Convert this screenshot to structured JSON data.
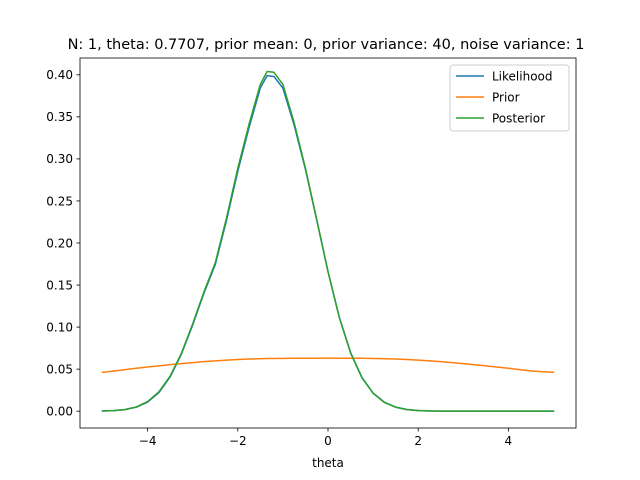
{
  "chart_data": {
    "type": "line",
    "title": "N: 1, theta: 0.7707, prior mean: 0, prior variance: 40, noise variance: 1",
    "xlabel": "theta",
    "ylabel": "",
    "xlim": [
      -5.5,
      5.5
    ],
    "ylim": [
      -0.02,
      0.42
    ],
    "xticks": [
      -4,
      -2,
      0,
      2,
      4
    ],
    "xtick_labels": [
      "−4",
      "−2",
      "0",
      "2",
      "4"
    ],
    "yticks": [
      0.0,
      0.05,
      0.1,
      0.15,
      0.2,
      0.25,
      0.3,
      0.35,
      0.4
    ],
    "ytick_labels": [
      "0.00",
      "0.05",
      "0.10",
      "0.15",
      "0.20",
      "0.25",
      "0.30",
      "0.35",
      "0.40"
    ],
    "grid": false,
    "legend_position": "top-right",
    "x": [
      -5.0,
      -4.75,
      -4.5,
      -4.25,
      -4.0,
      -3.75,
      -3.5,
      -3.25,
      -3.0,
      -2.75,
      -2.5,
      -2.25,
      -2.0,
      -1.75,
      -1.5,
      -1.35,
      -1.2,
      -1.0,
      -0.75,
      -0.5,
      -0.25,
      0.0,
      0.25,
      0.5,
      0.75,
      1.0,
      1.25,
      1.5,
      1.75,
      2.0,
      2.25,
      2.5,
      2.75,
      3.0,
      3.5,
      4.0,
      4.5,
      5.0
    ],
    "series": [
      {
        "name": "Likelihood",
        "color": "#1f77b4",
        "values": [
          0.0002,
          0.0007,
          0.0019,
          0.0048,
          0.0109,
          0.0222,
          0.0408,
          0.068,
          0.1026,
          0.1405,
          0.1743,
          0.2272,
          0.2854,
          0.3375,
          0.3845,
          0.399,
          0.398,
          0.3842,
          0.34,
          0.2874,
          0.2272,
          0.1659,
          0.1119,
          0.0699,
          0.0404,
          0.0216,
          0.0107,
          0.0049,
          0.002,
          0.0008,
          0.0003,
          0.0001,
          0.0,
          0.0,
          0.0,
          0.0,
          0.0,
          0.0
        ]
      },
      {
        "name": "Prior",
        "color": "#ff7f0e",
        "values": [
          0.0462,
          0.0478,
          0.0494,
          0.051,
          0.0525,
          0.0539,
          0.0553,
          0.0566,
          0.0578,
          0.0589,
          0.0598,
          0.0607,
          0.0614,
          0.062,
          0.0624,
          0.0626,
          0.0627,
          0.0628,
          0.0629,
          0.063,
          0.063,
          0.0631,
          0.063,
          0.063,
          0.0629,
          0.0627,
          0.0624,
          0.062,
          0.0614,
          0.0607,
          0.0598,
          0.0589,
          0.0578,
          0.0566,
          0.0539,
          0.051,
          0.0478,
          0.0462
        ]
      },
      {
        "name": "Posterior",
        "color": "#2ca02c",
        "values": [
          0.0002,
          0.0007,
          0.002,
          0.005,
          0.0114,
          0.023,
          0.0418,
          0.069,
          0.104,
          0.142,
          0.1765,
          0.23,
          0.289,
          0.3415,
          0.3888,
          0.404,
          0.403,
          0.3885,
          0.343,
          0.289,
          0.228,
          0.166,
          0.1115,
          0.0693,
          0.04,
          0.0212,
          0.0104,
          0.0047,
          0.0019,
          0.0007,
          0.0002,
          0.0001,
          0.0,
          0.0,
          0.0,
          0.0,
          0.0,
          0.0
        ]
      }
    ]
  },
  "colors": {
    "axes": "#000000",
    "legend_border": "#cccccc"
  }
}
